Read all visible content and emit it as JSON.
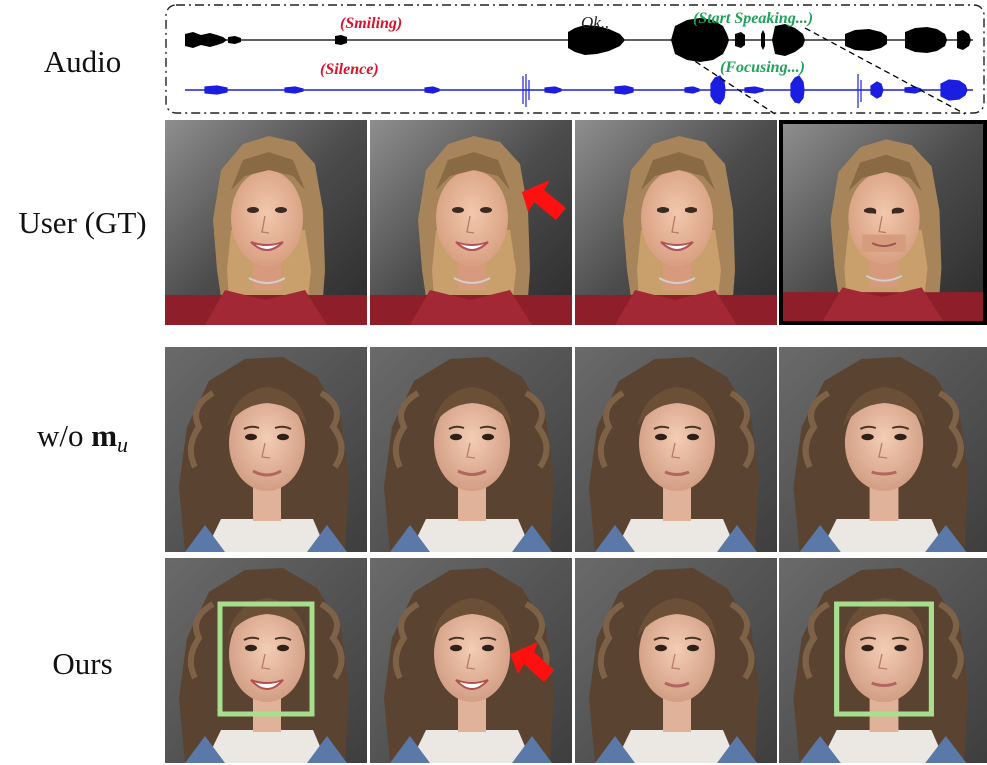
{
  "labels": {
    "audio": "Audio",
    "user": "User (GT)",
    "wo_prefix": "w/o ",
    "wo_symbol": "m",
    "wo_subscript": "u",
    "ours": "Ours"
  },
  "audio_annotations": {
    "smiling": "(Smiling)",
    "ok": "Ok..",
    "start_speaking": "(Start Speaking...)",
    "silence": "(Silence)",
    "focusing": "(Focusing...)"
  },
  "colors": {
    "annotation_red": "#e0102a",
    "annotation_green": "#1ea35a",
    "waveform_user": "#000000",
    "waveform_listener": "#1b1ee0",
    "highlight_box": "#a6df8e",
    "arrow_red": "#ff1010",
    "gt_frame_border": "#000000"
  }
}
